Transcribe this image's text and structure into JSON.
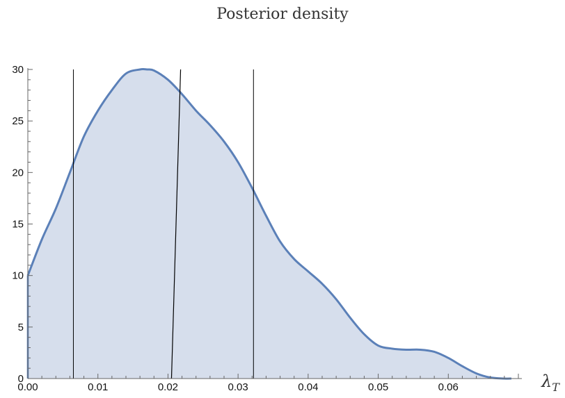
{
  "chart_data": {
    "type": "area",
    "title": "Posterior density",
    "xlabel": "λ",
    "xlabel_sub": "T",
    "ylabel": "",
    "xlim": [
      0,
      0.07
    ],
    "ylim": [
      0,
      30
    ],
    "x_ticks": [
      "0.00",
      "0.01",
      "0.02",
      "0.03",
      "0.04",
      "0.05",
      "0.06"
    ],
    "y_ticks": [
      "0",
      "5",
      "10",
      "15",
      "20",
      "25",
      "30"
    ],
    "grid": false,
    "fill_color": "#d6deec",
    "line_color": "#5b80b8",
    "series": [
      {
        "x": [
          0.0,
          0.002,
          0.004,
          0.006,
          0.008,
          0.01,
          0.012,
          0.014,
          0.016,
          0.017,
          0.018,
          0.02,
          0.022,
          0.024,
          0.026,
          0.028,
          0.03,
          0.032,
          0.034,
          0.036,
          0.038,
          0.04,
          0.042,
          0.044,
          0.046,
          0.048,
          0.05,
          0.052,
          0.054,
          0.056,
          0.058,
          0.06,
          0.062,
          0.064,
          0.066,
          0.068,
          0.069
        ],
        "y": [
          10.0,
          13.5,
          16.5,
          20.0,
          23.5,
          26.0,
          28.0,
          29.6,
          30.0,
          30.0,
          29.9,
          29.0,
          27.6,
          26.0,
          24.6,
          23.0,
          21.0,
          18.5,
          15.8,
          13.3,
          11.6,
          10.4,
          9.2,
          7.7,
          5.9,
          4.3,
          3.2,
          2.9,
          2.8,
          2.8,
          2.6,
          2.0,
          1.2,
          0.5,
          0.1,
          0.0,
          0.0
        ]
      }
    ],
    "vertical_lines": [
      0.0065,
      0.0322
    ],
    "slanted_line": {
      "x_bottom": 0.0205,
      "x_top": 0.0218
    }
  }
}
